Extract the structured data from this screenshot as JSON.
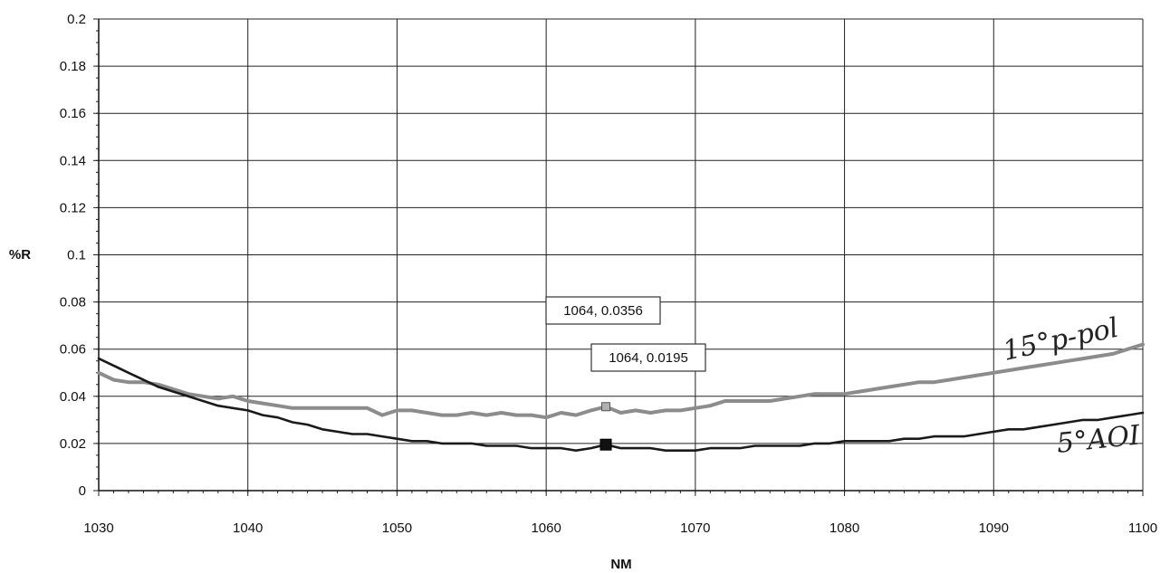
{
  "chart_data": {
    "type": "line",
    "xlabel": "NM",
    "ylabel": "%R",
    "xlim": [
      1030,
      1100
    ],
    "ylim": [
      0,
      0.2
    ],
    "x_ticks": [
      "1030",
      "1040",
      "1050",
      "1060",
      "1070",
      "1080",
      "1090",
      "1100"
    ],
    "y_ticks": [
      "0",
      "0.02",
      "0.04",
      "0.06",
      "0.08",
      "0.1",
      "0.12",
      "0.14",
      "0.16",
      "0.18",
      "0.2"
    ],
    "grid": true,
    "series": [
      {
        "name": "15°p-pol",
        "color": "#8c8c8c",
        "x": [
          1030,
          1031,
          1032,
          1033,
          1034,
          1035,
          1036,
          1037,
          1038,
          1039,
          1040,
          1041,
          1042,
          1043,
          1044,
          1045,
          1046,
          1047,
          1048,
          1049,
          1050,
          1051,
          1052,
          1053,
          1054,
          1055,
          1056,
          1057,
          1058,
          1059,
          1060,
          1061,
          1062,
          1063,
          1064,
          1065,
          1066,
          1067,
          1068,
          1069,
          1070,
          1071,
          1072,
          1073,
          1074,
          1075,
          1076,
          1077,
          1078,
          1079,
          1080,
          1081,
          1082,
          1083,
          1084,
          1085,
          1086,
          1087,
          1088,
          1089,
          1090,
          1091,
          1092,
          1093,
          1094,
          1095,
          1096,
          1097,
          1098,
          1099,
          1100
        ],
        "y": [
          0.05,
          0.047,
          0.046,
          0.046,
          0.045,
          0.043,
          0.041,
          0.04,
          0.039,
          0.04,
          0.038,
          0.037,
          0.036,
          0.035,
          0.035,
          0.035,
          0.035,
          0.035,
          0.035,
          0.032,
          0.034,
          0.034,
          0.033,
          0.032,
          0.032,
          0.033,
          0.032,
          0.033,
          0.032,
          0.032,
          0.031,
          0.033,
          0.032,
          0.034,
          0.0356,
          0.033,
          0.034,
          0.033,
          0.034,
          0.034,
          0.035,
          0.036,
          0.038,
          0.038,
          0.038,
          0.038,
          0.039,
          0.04,
          0.041,
          0.041,
          0.041,
          0.042,
          0.043,
          0.044,
          0.045,
          0.046,
          0.046,
          0.047,
          0.048,
          0.049,
          0.05,
          0.051,
          0.052,
          0.053,
          0.054,
          0.055,
          0.056,
          0.057,
          0.058,
          0.06,
          0.062
        ]
      },
      {
        "name": "5°AOI",
        "color": "#1a1a1a",
        "x": [
          1030,
          1031,
          1032,
          1033,
          1034,
          1035,
          1036,
          1037,
          1038,
          1039,
          1040,
          1041,
          1042,
          1043,
          1044,
          1045,
          1046,
          1047,
          1048,
          1049,
          1050,
          1051,
          1052,
          1053,
          1054,
          1055,
          1056,
          1057,
          1058,
          1059,
          1060,
          1061,
          1062,
          1063,
          1064,
          1065,
          1066,
          1067,
          1068,
          1069,
          1070,
          1071,
          1072,
          1073,
          1074,
          1075,
          1076,
          1077,
          1078,
          1079,
          1080,
          1081,
          1082,
          1083,
          1084,
          1085,
          1086,
          1087,
          1088,
          1089,
          1090,
          1091,
          1092,
          1093,
          1094,
          1095,
          1096,
          1097,
          1098,
          1099,
          1100
        ],
        "y": [
          0.056,
          0.053,
          0.05,
          0.047,
          0.044,
          0.042,
          0.04,
          0.038,
          0.036,
          0.035,
          0.034,
          0.032,
          0.031,
          0.029,
          0.028,
          0.026,
          0.025,
          0.024,
          0.024,
          0.023,
          0.022,
          0.021,
          0.021,
          0.02,
          0.02,
          0.02,
          0.019,
          0.019,
          0.019,
          0.018,
          0.018,
          0.018,
          0.017,
          0.018,
          0.0195,
          0.018,
          0.018,
          0.018,
          0.017,
          0.017,
          0.017,
          0.018,
          0.018,
          0.018,
          0.019,
          0.019,
          0.019,
          0.019,
          0.02,
          0.02,
          0.021,
          0.021,
          0.021,
          0.021,
          0.022,
          0.022,
          0.023,
          0.023,
          0.023,
          0.024,
          0.025,
          0.026,
          0.026,
          0.027,
          0.028,
          0.029,
          0.03,
          0.03,
          0.031,
          0.032,
          0.033
        ]
      }
    ],
    "annotations": [
      {
        "text": "1064, 0.0356",
        "x": 1064,
        "y": 0.0356,
        "marker_color": "#b0b0b0"
      },
      {
        "text": "1064, 0.0195",
        "x": 1064,
        "y": 0.0195,
        "marker_color": "#111111"
      }
    ]
  }
}
